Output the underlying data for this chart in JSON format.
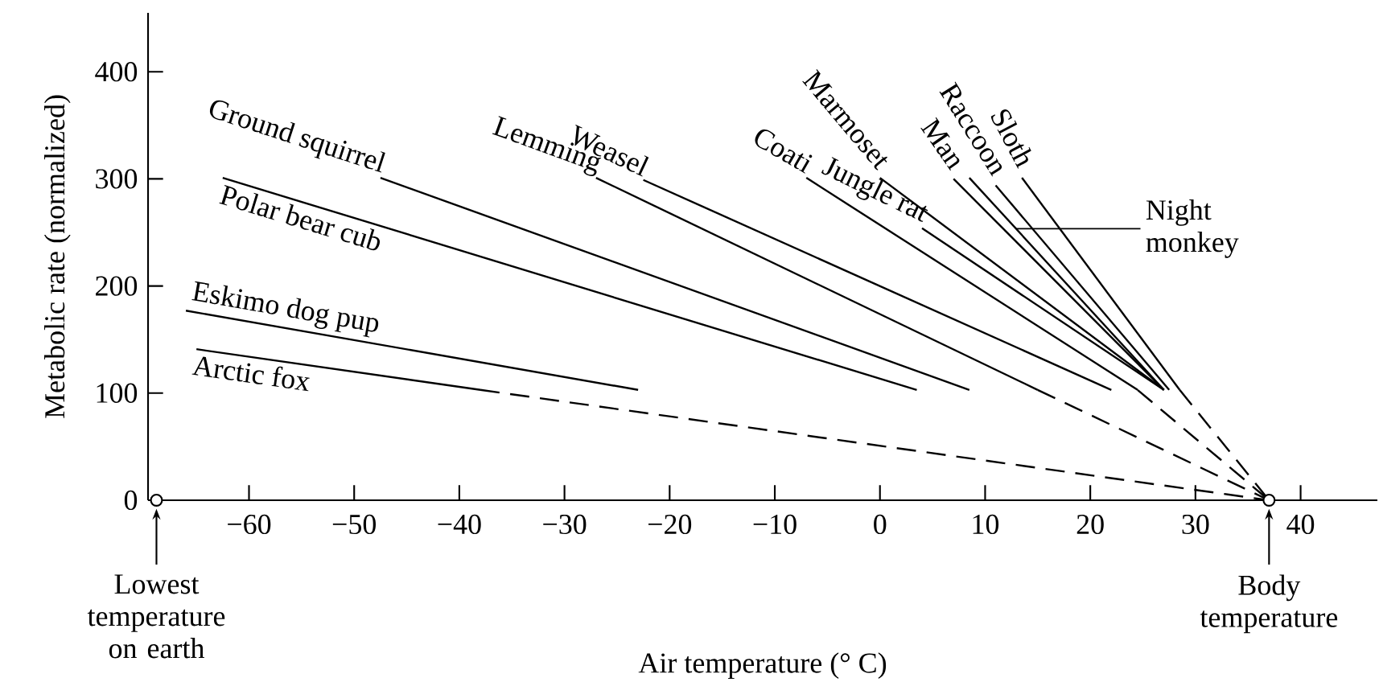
{
  "chart_data": {
    "type": "line",
    "xlabel": "Air temperature (° C)",
    "ylabel": "Metabolic rate (normalized)",
    "xlim": [
      -69.6,
      47.3
    ],
    "ylim": [
      0,
      455
    ],
    "xticks": [
      {
        "value": -60,
        "label": "−60"
      },
      {
        "value": -50,
        "label": "−50"
      },
      {
        "value": -40,
        "label": "−40"
      },
      {
        "value": -30,
        "label": "−30"
      },
      {
        "value": -20,
        "label": "−20"
      },
      {
        "value": -10,
        "label": "−10"
      },
      0,
      10,
      20,
      30,
      40
    ],
    "yticks": [
      0,
      100,
      200,
      300,
      400
    ],
    "series": [
      {
        "name": "Arctic fox",
        "color": "#000000",
        "x": [
          -65,
          -38
        ],
        "values": [
          141,
          103
        ]
      },
      {
        "color": "#000000",
        "line_style": "dashed",
        "x": [
          -38,
          37
        ],
        "values": [
          103,
          0
        ]
      },
      {
        "name": "Eskimo dog pup",
        "color": "#000000",
        "x": [
          -66,
          -23
        ],
        "values": [
          177,
          103
        ]
      },
      {
        "name": "Polar bear cub",
        "color": "#000000",
        "x": [
          -62.5,
          3.5
        ],
        "values": [
          301,
          103
        ]
      },
      {
        "name": "Ground squirrel",
        "color": "#000000",
        "x": [
          -47.5,
          8.5
        ],
        "values": [
          301,
          103
        ]
      },
      {
        "name": "Lemming",
        "color": "#000000",
        "x": [
          -27,
          15
        ],
        "values": [
          301,
          103
        ]
      },
      {
        "color": "#000000",
        "line_style": "dashed",
        "x": [
          15,
          37
        ],
        "values": [
          103,
          0
        ]
      },
      {
        "name": "Weasel",
        "color": "#000000",
        "x": [
          -22.5,
          22
        ],
        "values": [
          299,
          103
        ]
      },
      {
        "name": "Coati",
        "color": "#000000",
        "x": [
          -7,
          24.5
        ],
        "values": [
          301,
          103
        ]
      },
      {
        "color": "#000000",
        "line_style": "dashed",
        "x": [
          24.5,
          37
        ],
        "values": [
          103,
          0
        ]
      },
      {
        "name": "Jungle rat",
        "color": "#000000",
        "x": [
          4,
          27
        ],
        "values": [
          254,
          103
        ]
      },
      {
        "name": "Marmoset",
        "color": "#000000",
        "x": [
          0,
          27
        ],
        "values": [
          301,
          103
        ]
      },
      {
        "name": "Man",
        "color": "#000000",
        "x": [
          7,
          27
        ],
        "values": [
          300,
          103
        ]
      },
      {
        "name": "Raccoon",
        "color": "#000000",
        "x": [
          11,
          27.5
        ],
        "values": [
          294,
          103
        ]
      },
      {
        "name": "Sloth",
        "color": "#000000",
        "x": [
          13.5,
          28.5
        ],
        "values": [
          301,
          103
        ]
      },
      {
        "color": "#000000",
        "line_style": "dashed",
        "x": [
          28.5,
          37
        ],
        "values": [
          103,
          0
        ]
      },
      {
        "name": "Night monkey",
        "color": "#000000",
        "x": [
          8.5,
          27
        ],
        "values": [
          301,
          103
        ]
      }
    ],
    "annotations": [
      {
        "text": "Lowest temperature on earth",
        "x": -68.8,
        "y": 0
      },
      {
        "text": "Body temperature",
        "x": 37,
        "y": 0
      }
    ]
  }
}
